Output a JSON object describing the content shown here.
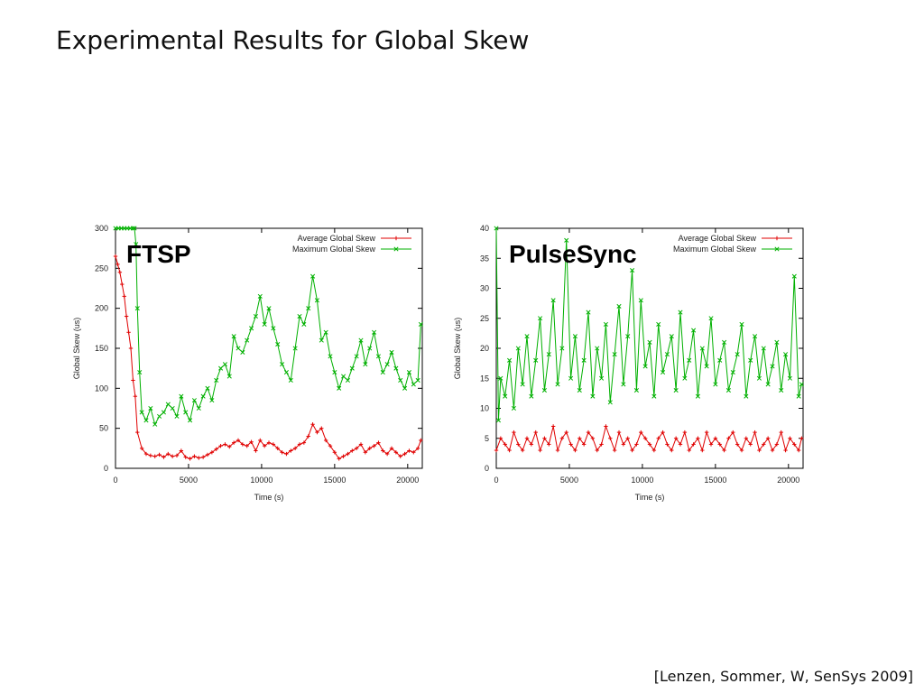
{
  "slide": {
    "title": "Experimental Results for Global Skew",
    "citation": "[Lenzen, Sommer, W, SenSys 2009]"
  },
  "chart_data": [
    {
      "type": "line",
      "label": "FTSP",
      "xlabel": "Time (s)",
      "ylabel": "Global Skew (us)",
      "xlim": [
        0,
        21000
      ],
      "ylim": [
        0,
        300
      ],
      "xticks": [
        0,
        5000,
        10000,
        15000,
        20000
      ],
      "yticks": [
        0,
        50,
        100,
        150,
        200,
        250,
        300
      ],
      "legend_position": "top-right",
      "series": [
        {
          "name": "Average Global Skew",
          "color": "#e00000",
          "marker": "+",
          "x": [
            0,
            150,
            300,
            450,
            600,
            750,
            900,
            1050,
            1200,
            1350,
            1500,
            1800,
            2100,
            2400,
            2700,
            3000,
            3300,
            3600,
            3900,
            4200,
            4500,
            4800,
            5100,
            5400,
            5700,
            6000,
            6300,
            6600,
            6900,
            7200,
            7500,
            7800,
            8100,
            8400,
            8700,
            9000,
            9300,
            9600,
            9900,
            10200,
            10500,
            10800,
            11100,
            11400,
            11700,
            12000,
            12300,
            12600,
            12900,
            13200,
            13500,
            13800,
            14100,
            14400,
            14700,
            15000,
            15300,
            15600,
            15900,
            16200,
            16500,
            16800,
            17100,
            17400,
            17700,
            18000,
            18300,
            18600,
            18900,
            19200,
            19500,
            19800,
            20100,
            20400,
            20700,
            20900
          ],
          "y": [
            265,
            255,
            245,
            230,
            215,
            190,
            170,
            150,
            110,
            90,
            45,
            25,
            18,
            16,
            15,
            17,
            14,
            18,
            15,
            16,
            22,
            14,
            12,
            15,
            13,
            14,
            17,
            20,
            24,
            28,
            30,
            27,
            32,
            35,
            30,
            28,
            33,
            22,
            35,
            28,
            32,
            30,
            25,
            20,
            18,
            22,
            25,
            30,
            32,
            40,
            55,
            45,
            50,
            35,
            28,
            20,
            12,
            15,
            18,
            22,
            25,
            30,
            20,
            25,
            28,
            32,
            22,
            18,
            25,
            20,
            15,
            18,
            22,
            20,
            25,
            35
          ]
        },
        {
          "name": "Maximum Global Skew",
          "color": "#00b000",
          "marker": "x",
          "x": [
            0,
            200,
            400,
            600,
            800,
            1000,
            1200,
            1300,
            1400,
            1500,
            1650,
            1800,
            2100,
            2400,
            2700,
            3000,
            3300,
            3600,
            3900,
            4200,
            4500,
            4800,
            5100,
            5400,
            5700,
            6000,
            6300,
            6600,
            6900,
            7200,
            7500,
            7800,
            8100,
            8400,
            8700,
            9000,
            9300,
            9600,
            9900,
            10200,
            10500,
            10800,
            11100,
            11400,
            11700,
            12000,
            12300,
            12600,
            12900,
            13200,
            13500,
            13800,
            14100,
            14400,
            14700,
            15000,
            15300,
            15600,
            15900,
            16200,
            16500,
            16800,
            17100,
            17400,
            17700,
            18000,
            18300,
            18600,
            18900,
            19200,
            19500,
            19800,
            20100,
            20400,
            20700,
            20900
          ],
          "y": [
            300,
            300,
            300,
            300,
            300,
            300,
            300,
            300,
            280,
            200,
            120,
            70,
            60,
            75,
            55,
            65,
            70,
            80,
            75,
            65,
            90,
            70,
            60,
            85,
            75,
            90,
            100,
            85,
            110,
            125,
            130,
            115,
            165,
            150,
            145,
            160,
            175,
            190,
            215,
            180,
            200,
            175,
            155,
            130,
            120,
            110,
            150,
            190,
            180,
            200,
            240,
            210,
            160,
            170,
            140,
            120,
            100,
            115,
            110,
            125,
            140,
            160,
            130,
            150,
            170,
            140,
            120,
            130,
            145,
            125,
            110,
            100,
            120,
            105,
            110,
            180
          ]
        }
      ]
    },
    {
      "type": "line",
      "label": "PulseSync",
      "xlabel": "Time (s)",
      "ylabel": "Global Skew (us)",
      "xlim": [
        0,
        21000
      ],
      "ylim": [
        0,
        40
      ],
      "xticks": [
        0,
        5000,
        10000,
        15000,
        20000
      ],
      "yticks": [
        0,
        5,
        10,
        15,
        20,
        25,
        30,
        35,
        40
      ],
      "legend_position": "top-right",
      "series": [
        {
          "name": "Average Global Skew",
          "color": "#e00000",
          "marker": "+",
          "x": [
            0,
            300,
            600,
            900,
            1200,
            1500,
            1800,
            2100,
            2400,
            2700,
            3000,
            3300,
            3600,
            3900,
            4200,
            4500,
            4800,
            5100,
            5400,
            5700,
            6000,
            6300,
            6600,
            6900,
            7200,
            7500,
            7800,
            8100,
            8400,
            8700,
            9000,
            9300,
            9600,
            9900,
            10200,
            10500,
            10800,
            11100,
            11400,
            11700,
            12000,
            12300,
            12600,
            12900,
            13200,
            13500,
            13800,
            14100,
            14400,
            14700,
            15000,
            15300,
            15600,
            15900,
            16200,
            16500,
            16800,
            17100,
            17400,
            17700,
            18000,
            18300,
            18600,
            18900,
            19200,
            19500,
            19800,
            20100,
            20400,
            20700,
            20900
          ],
          "y": [
            3,
            5,
            4,
            3,
            6,
            4,
            3,
            5,
            4,
            6,
            3,
            5,
            4,
            7,
            3,
            5,
            6,
            4,
            3,
            5,
            4,
            6,
            5,
            3,
            4,
            7,
            5,
            3,
            6,
            4,
            5,
            3,
            4,
            6,
            5,
            4,
            3,
            5,
            6,
            4,
            3,
            5,
            4,
            6,
            3,
            4,
            5,
            3,
            6,
            4,
            5,
            4,
            3,
            5,
            6,
            4,
            3,
            5,
            4,
            6,
            3,
            4,
            5,
            3,
            4,
            6,
            3,
            5,
            4,
            3,
            5
          ]
        },
        {
          "name": "Maximum Global Skew",
          "color": "#00b000",
          "marker": "x",
          "x": [
            0,
            150,
            300,
            600,
            900,
            1200,
            1500,
            1800,
            2100,
            2400,
            2700,
            3000,
            3300,
            3600,
            3900,
            4200,
            4500,
            4800,
            5100,
            5400,
            5700,
            6000,
            6300,
            6600,
            6900,
            7200,
            7500,
            7800,
            8100,
            8400,
            8700,
            9000,
            9300,
            9600,
            9900,
            10200,
            10500,
            10800,
            11100,
            11400,
            11700,
            12000,
            12300,
            12600,
            12900,
            13200,
            13500,
            13800,
            14100,
            14400,
            14700,
            15000,
            15300,
            15600,
            15900,
            16200,
            16500,
            16800,
            17100,
            17400,
            17700,
            18000,
            18300,
            18600,
            18900,
            19200,
            19500,
            19800,
            20100,
            20400,
            20700,
            20900
          ],
          "y": [
            40,
            8,
            15,
            12,
            18,
            10,
            20,
            14,
            22,
            12,
            18,
            25,
            13,
            19,
            28,
            14,
            20,
            38,
            15,
            22,
            13,
            18,
            26,
            12,
            20,
            15,
            24,
            11,
            19,
            27,
            14,
            22,
            33,
            13,
            28,
            17,
            21,
            12,
            24,
            16,
            19,
            22,
            13,
            26,
            15,
            18,
            23,
            12,
            20,
            17,
            25,
            14,
            18,
            21,
            13,
            16,
            19,
            24,
            12,
            18,
            22,
            15,
            20,
            14,
            17,
            21,
            13,
            19,
            15,
            32,
            12,
            14
          ]
        }
      ]
    }
  ]
}
